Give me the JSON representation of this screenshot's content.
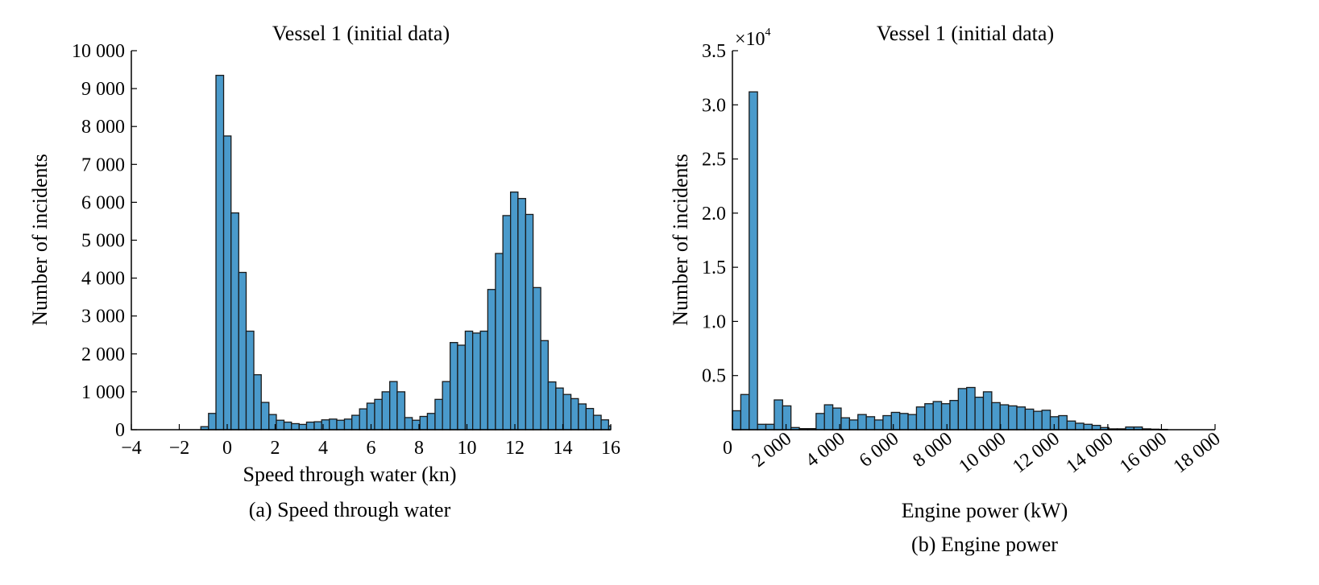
{
  "chart_data": [
    {
      "type": "bar",
      "title": "Vessel 1 (initial data)",
      "xlabel": "Speed through water (kn)",
      "ylabel": "Number of incidents",
      "caption": "(a) Speed through water",
      "xlim": [
        -4,
        16
      ],
      "ylim": [
        0,
        10000
      ],
      "xticks": [
        -4,
        -2,
        0,
        2,
        4,
        6,
        8,
        10,
        12,
        14,
        16
      ],
      "xtick_labels": [
        "−4",
        "−2",
        "0",
        "2",
        "4",
        "6",
        "8",
        "10",
        "12",
        "14",
        "16"
      ],
      "yticks": [
        0,
        1000,
        2000,
        3000,
        4000,
        5000,
        6000,
        7000,
        8000,
        9000,
        10000
      ],
      "ytick_labels": [
        "0",
        "1 000",
        "2 000",
        "3 000",
        "4 000",
        "5 000",
        "6 000",
        "7 000",
        "8 000",
        "9 000",
        "10 000"
      ],
      "bin_edges": [
        -1.1,
        -0.78,
        -0.47,
        -0.15,
        0.16,
        0.48,
        0.79,
        1.11,
        1.42,
        1.74,
        2.05,
        2.37,
        2.68,
        3.0,
        3.31,
        3.63,
        3.94,
        4.26,
        4.57,
        4.89,
        5.2,
        5.52,
        5.83,
        6.15,
        6.46,
        6.78,
        7.09,
        7.41,
        7.72,
        8.04,
        8.35,
        8.67,
        8.98,
        9.3,
        9.61,
        9.93,
        10.24,
        10.56,
        10.87,
        11.19,
        11.5,
        11.82,
        12.13,
        12.45,
        12.76,
        13.08,
        13.39,
        13.71,
        14.02,
        14.34,
        14.65,
        14.97,
        15.28,
        15.6,
        15.91,
        16.0
      ],
      "values": [
        80,
        430,
        9350,
        7750,
        5720,
        4150,
        2600,
        1450,
        720,
        400,
        250,
        200,
        160,
        140,
        200,
        210,
        260,
        280,
        250,
        280,
        380,
        550,
        700,
        800,
        1000,
        1270,
        1000,
        320,
        250,
        350,
        430,
        800,
        1270,
        2300,
        2230,
        2600,
        2550,
        2600,
        3700,
        4650,
        5650,
        6270,
        6100,
        5680,
        3750,
        2350,
        1260,
        1100,
        930,
        820,
        680,
        560,
        380,
        260,
        100
      ]
    },
    {
      "type": "bar",
      "title": "Vessel 1 (initial data)",
      "xlabel": "Engine power (kW)",
      "ylabel": "Number of incidents",
      "caption": "(b) Engine power",
      "y_multiplier": "×10",
      "y_multiplier_exp": "4",
      "xlim": [
        0,
        18000
      ],
      "ylim": [
        0,
        35000
      ],
      "xticks": [
        0,
        2000,
        4000,
        6000,
        8000,
        10000,
        12000,
        14000,
        16000,
        18000
      ],
      "xtick_labels": [
        "0",
        "2 000",
        "4 000",
        "6 000",
        "8 000",
        "10 000",
        "12 000",
        "14 000",
        "16 000",
        "18 000"
      ],
      "yticks": [
        5000,
        10000,
        15000,
        20000,
        25000,
        30000,
        35000
      ],
      "ytick_labels": [
        "0.5",
        "1.0",
        "1.5",
        "2.0",
        "2.5",
        "3.0",
        "3.5"
      ],
      "bin_edges": [
        0,
        312,
        624,
        936,
        1248,
        1560,
        1872,
        2184,
        2496,
        2808,
        3120,
        3432,
        3744,
        4056,
        4368,
        4680,
        4992,
        5304,
        5616,
        5928,
        6240,
        6552,
        6864,
        7176,
        7488,
        7800,
        8112,
        8424,
        8736,
        9048,
        9360,
        9672,
        9984,
        10296,
        10608,
        10920,
        11232,
        11544,
        11856,
        12168,
        12480,
        12792,
        13104,
        13416,
        13728,
        14040,
        14352,
        14664,
        14976,
        15288,
        15600,
        15912,
        16224,
        16536,
        16848,
        17160,
        17472,
        17784,
        18096
      ],
      "values": [
        1750,
        3250,
        31200,
        500,
        500,
        2750,
        2200,
        200,
        100,
        100,
        1500,
        2300,
        2000,
        1100,
        900,
        1400,
        1200,
        900,
        1300,
        1600,
        1500,
        1400,
        2100,
        2400,
        2600,
        2400,
        2700,
        3800,
        3900,
        3000,
        3500,
        2500,
        2300,
        2200,
        2100,
        1900,
        1700,
        1800,
        1200,
        1300,
        800,
        600,
        500,
        400,
        200,
        80,
        80,
        250,
        250,
        80,
        50,
        30,
        0,
        0,
        0,
        0,
        0,
        0
      ]
    }
  ]
}
